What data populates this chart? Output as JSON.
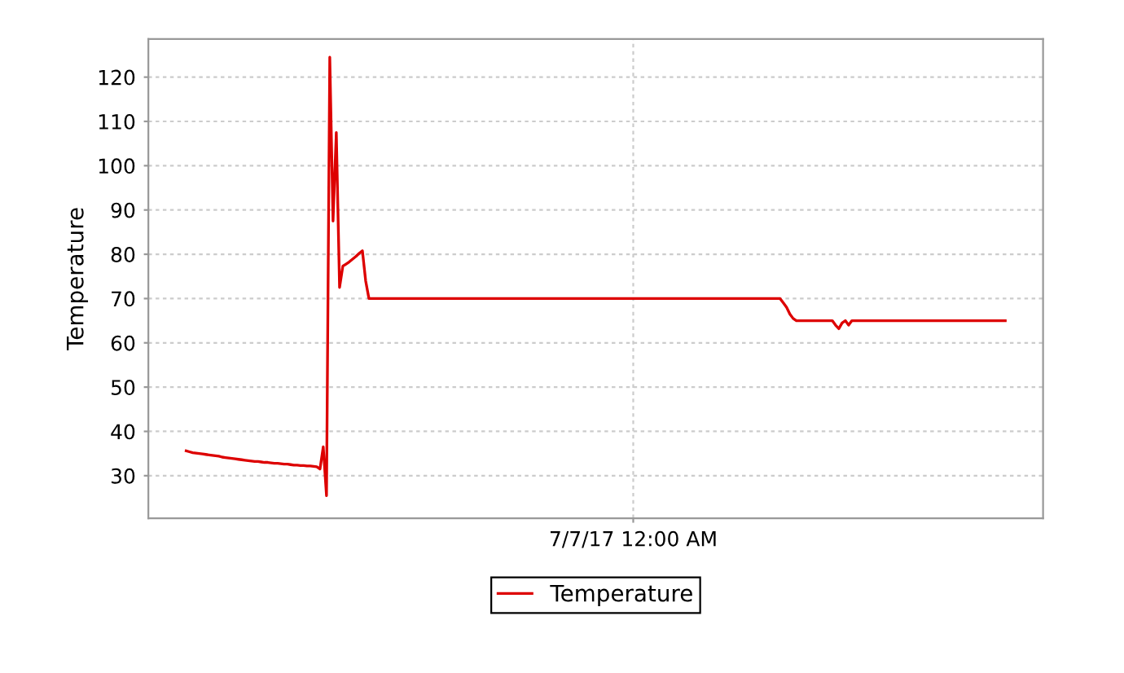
{
  "chart_data": {
    "type": "line",
    "ylabel": "Temperature",
    "categories": [
      null,
      null,
      null,
      null,
      null,
      null,
      null,
      null,
      null,
      null,
      null,
      null,
      null,
      null,
      null,
      null,
      null,
      null,
      null,
      null,
      null,
      null,
      null,
      null,
      null,
      null,
      null,
      null,
      null,
      null,
      null,
      null,
      null,
      null,
      null,
      null,
      null,
      null,
      null,
      null,
      null,
      null,
      null,
      null,
      null,
      null,
      null,
      null,
      null,
      null,
      null,
      null,
      null,
      null,
      null,
      null,
      null,
      null,
      null,
      null,
      null,
      null,
      null,
      null,
      null,
      null,
      null,
      null,
      null,
      null,
      null,
      null,
      null,
      null,
      null,
      null,
      null,
      null,
      null,
      null,
      null,
      null,
      null,
      null,
      null,
      null,
      null,
      null,
      null,
      null,
      null,
      null,
      null,
      null,
      null,
      null,
      null,
      null,
      null,
      null,
      null,
      null,
      null,
      null,
      null,
      null,
      null,
      null,
      null,
      null,
      null,
      null,
      null,
      null,
      null,
      null,
      null,
      null,
      null,
      null,
      null,
      null,
      null,
      null,
      null,
      null,
      null,
      null,
      null,
      null,
      null,
      null,
      null,
      null,
      null,
      null,
      null,
      "7/7/17 12:00 AM",
      null,
      null,
      null,
      null,
      null,
      null,
      null,
      null,
      null,
      null,
      null,
      null,
      null,
      null,
      null,
      null,
      null,
      null,
      null,
      null,
      null,
      null,
      null,
      null,
      null,
      null,
      null,
      null,
      null,
      null,
      null,
      null,
      null,
      null,
      null,
      null,
      null,
      null,
      null,
      null,
      null,
      null,
      null,
      null,
      null,
      null,
      null,
      null,
      null,
      null,
      null,
      null,
      null,
      null,
      null,
      null,
      null,
      null,
      null,
      null,
      null,
      null,
      null,
      null,
      null,
      null,
      null,
      null,
      null,
      null,
      null,
      null,
      null,
      null,
      null,
      null,
      null,
      null,
      null,
      null,
      null,
      null,
      null,
      null,
      null,
      null,
      null,
      null,
      null,
      null,
      null,
      null,
      null,
      null,
      null,
      null,
      null,
      null,
      null,
      null,
      null,
      null,
      null,
      null,
      null,
      null,
      null,
      null,
      null,
      null,
      null,
      null,
      null,
      null
    ],
    "series": [
      {
        "name": "Temperature",
        "color": "#dd0000",
        "values": [
          35.6,
          35.4,
          35.2,
          35.1,
          35.0,
          34.9,
          34.8,
          34.7,
          34.6,
          34.5,
          34.4,
          34.2,
          34.1,
          34.0,
          33.9,
          33.8,
          33.7,
          33.6,
          33.5,
          33.4,
          33.3,
          33.2,
          33.2,
          33.1,
          33.0,
          33.0,
          32.9,
          32.8,
          32.8,
          32.7,
          32.6,
          32.6,
          32.5,
          32.4,
          32.4,
          32.3,
          32.3,
          32.2,
          32.2,
          32.1,
          32.0,
          31.5,
          36.5,
          25.5,
          124.5,
          87.5,
          107.5,
          72.5,
          77.3,
          77.8,
          78.3,
          78.9,
          79.5,
          80.2,
          80.8,
          74,
          70,
          70,
          70,
          70,
          70,
          70,
          70,
          70,
          70,
          70,
          70,
          70,
          70,
          70,
          70,
          70,
          70,
          70,
          70,
          70,
          70,
          70,
          70,
          70,
          70,
          70,
          70,
          70,
          70,
          70,
          70,
          70,
          70,
          70,
          70,
          70,
          70,
          70,
          70,
          70,
          70,
          70,
          70,
          70,
          70,
          70,
          70,
          70,
          70,
          70,
          70,
          70,
          70,
          70,
          70,
          70,
          70,
          70,
          70,
          70,
          70,
          70,
          70,
          70,
          70,
          70,
          70,
          70,
          70,
          70,
          70,
          70,
          70,
          70,
          70,
          70,
          70,
          70,
          70,
          70,
          70,
          70,
          70,
          70,
          70,
          70,
          70,
          70,
          70,
          70,
          70,
          70,
          70,
          70,
          70,
          70,
          70,
          70,
          70,
          70,
          70,
          70,
          70,
          70,
          70,
          70,
          70,
          70,
          70,
          70,
          70,
          70,
          70,
          70,
          70,
          70,
          70,
          70,
          70,
          70,
          70,
          70,
          70,
          70,
          70,
          70,
          70,
          69,
          68,
          66.5,
          65.5,
          65,
          65,
          65,
          65,
          65,
          65,
          65,
          65,
          65,
          65,
          65,
          65,
          64,
          63.2,
          64.5,
          65,
          64,
          65,
          65,
          65,
          65,
          65,
          65,
          65,
          65,
          65,
          65,
          65,
          65,
          65,
          65,
          65,
          65,
          65,
          65,
          65,
          65,
          65,
          65,
          65,
          65,
          65,
          65,
          65,
          65,
          65,
          65,
          65,
          65,
          65,
          65,
          65,
          65,
          65,
          65,
          65,
          65,
          65,
          65,
          65,
          65,
          65,
          65,
          65,
          65
        ]
      }
    ],
    "ylim": [
      20.4,
      128.6
    ],
    "yticks": [
      30,
      40,
      50,
      60,
      70,
      80,
      90,
      100,
      110,
      120
    ],
    "grid": true,
    "legend": "bottom",
    "marker": "none",
    "line_style": "solid"
  }
}
